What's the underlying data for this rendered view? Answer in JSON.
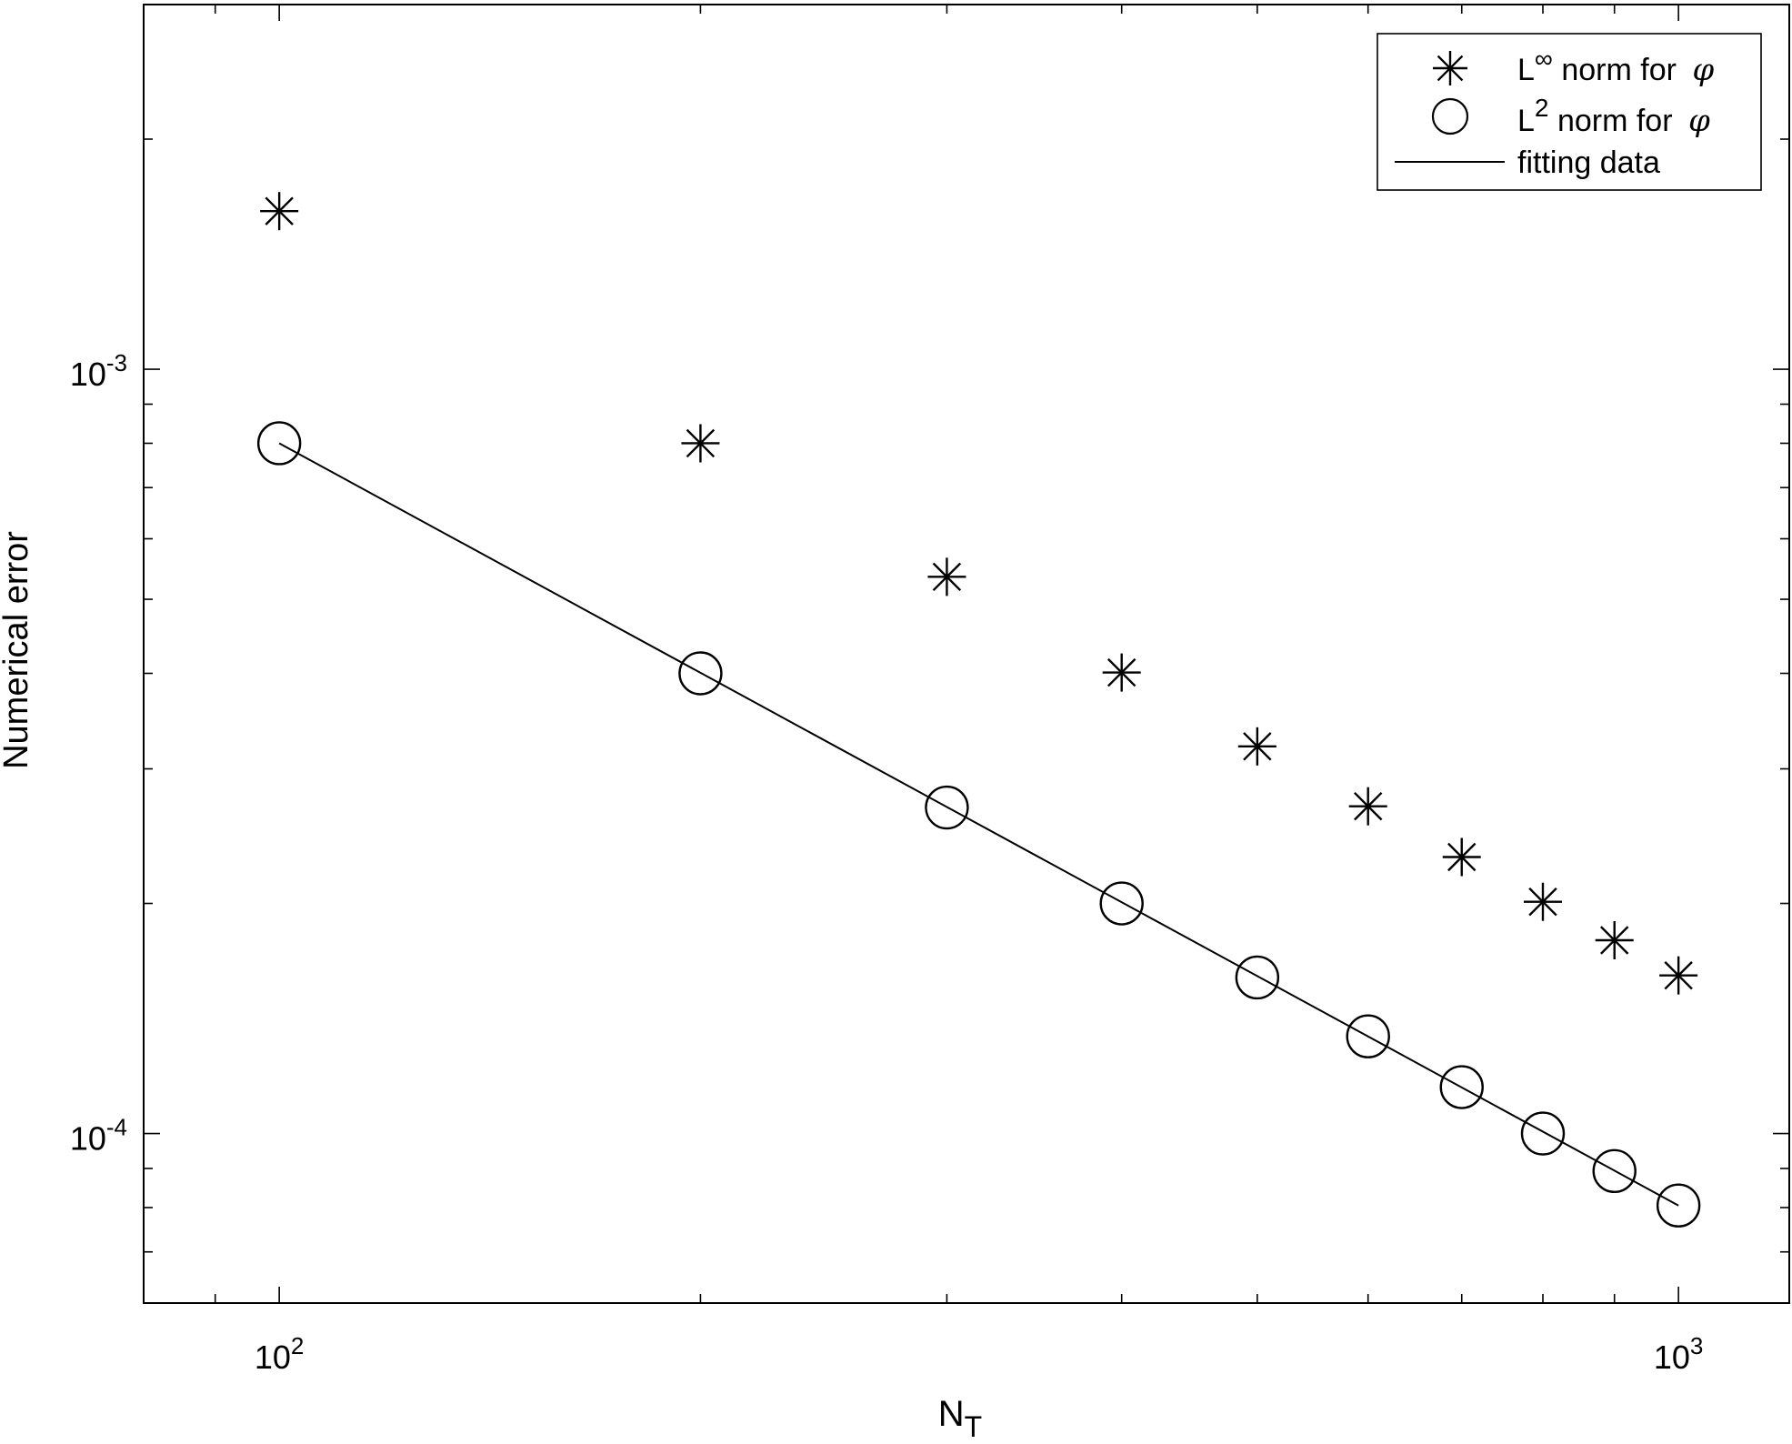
{
  "chart_data": {
    "type": "scatter",
    "title": "",
    "xlabel": {
      "base": "N",
      "sub": "T"
    },
    "ylabel": "Numerical error",
    "xscale": "log",
    "yscale": "log",
    "xlim": [
      80,
      1200
    ],
    "ylim": [
      6e-05,
      0.003
    ],
    "grid": false,
    "legend_position": "top-right",
    "x_ticks": [
      {
        "value": 100,
        "base": "10",
        "exp": "2"
      },
      {
        "value": 1000,
        "base": "10",
        "exp": "3"
      }
    ],
    "y_ticks": [
      {
        "value": 0.001,
        "base": "10",
        "exp": "-3"
      },
      {
        "value": 0.0001,
        "base": "10",
        "exp": "-4"
      }
    ],
    "series": [
      {
        "name": {
          "prefix": "L",
          "sup": "∞",
          "suffix": " norm for ",
          "sym": "φ"
        },
        "marker": "asterisk",
        "x": [
          100,
          200,
          300,
          400,
          500,
          600,
          700,
          800,
          900,
          1000
        ],
        "y": [
          0.00161,
          0.0008,
          0.000535,
          0.000401,
          0.000321,
          0.000268,
          0.00023,
          0.000201,
          0.000179,
          0.000161
        ]
      },
      {
        "name": {
          "prefix": "L",
          "sup": "2",
          "suffix": " norm for ",
          "sym": "φ"
        },
        "marker": "circle",
        "x": [
          100,
          200,
          300,
          400,
          500,
          600,
          700,
          800,
          900,
          1000
        ],
        "y": [
          0.0008,
          0.0004,
          0.000267,
          0.0002,
          0.00016,
          0.000134,
          0.000115,
          0.0001,
          8.93e-05,
          8.05e-05
        ]
      },
      {
        "name": {
          "prefix": "fitting data",
          "sup": "",
          "suffix": "",
          "sym": ""
        },
        "marker": "line",
        "x": [
          100,
          1000
        ],
        "y": [
          0.0008,
          8.05e-05
        ]
      }
    ]
  }
}
